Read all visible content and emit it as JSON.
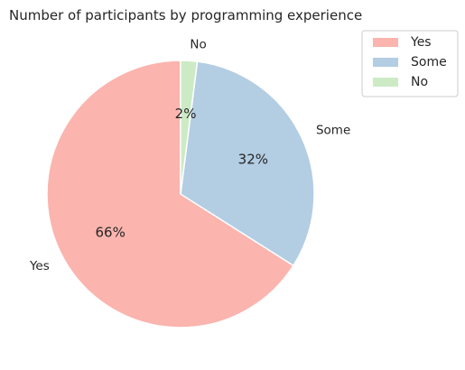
{
  "chart_data": {
    "type": "pie",
    "title": "Number of participants by programming experience",
    "labels": [
      "Yes",
      "Some",
      "No"
    ],
    "values": [
      66,
      32,
      2
    ],
    "display": [
      "66%",
      "32%",
      "2%"
    ],
    "colors": [
      "#fbb4ae",
      "#b3cde3",
      "#ccebc5"
    ],
    "start_angle_deg": 90,
    "direction": "counterclockwise",
    "legend": {
      "position": "upper-right-outside",
      "entries": [
        "Yes",
        "Some",
        "No"
      ]
    }
  }
}
